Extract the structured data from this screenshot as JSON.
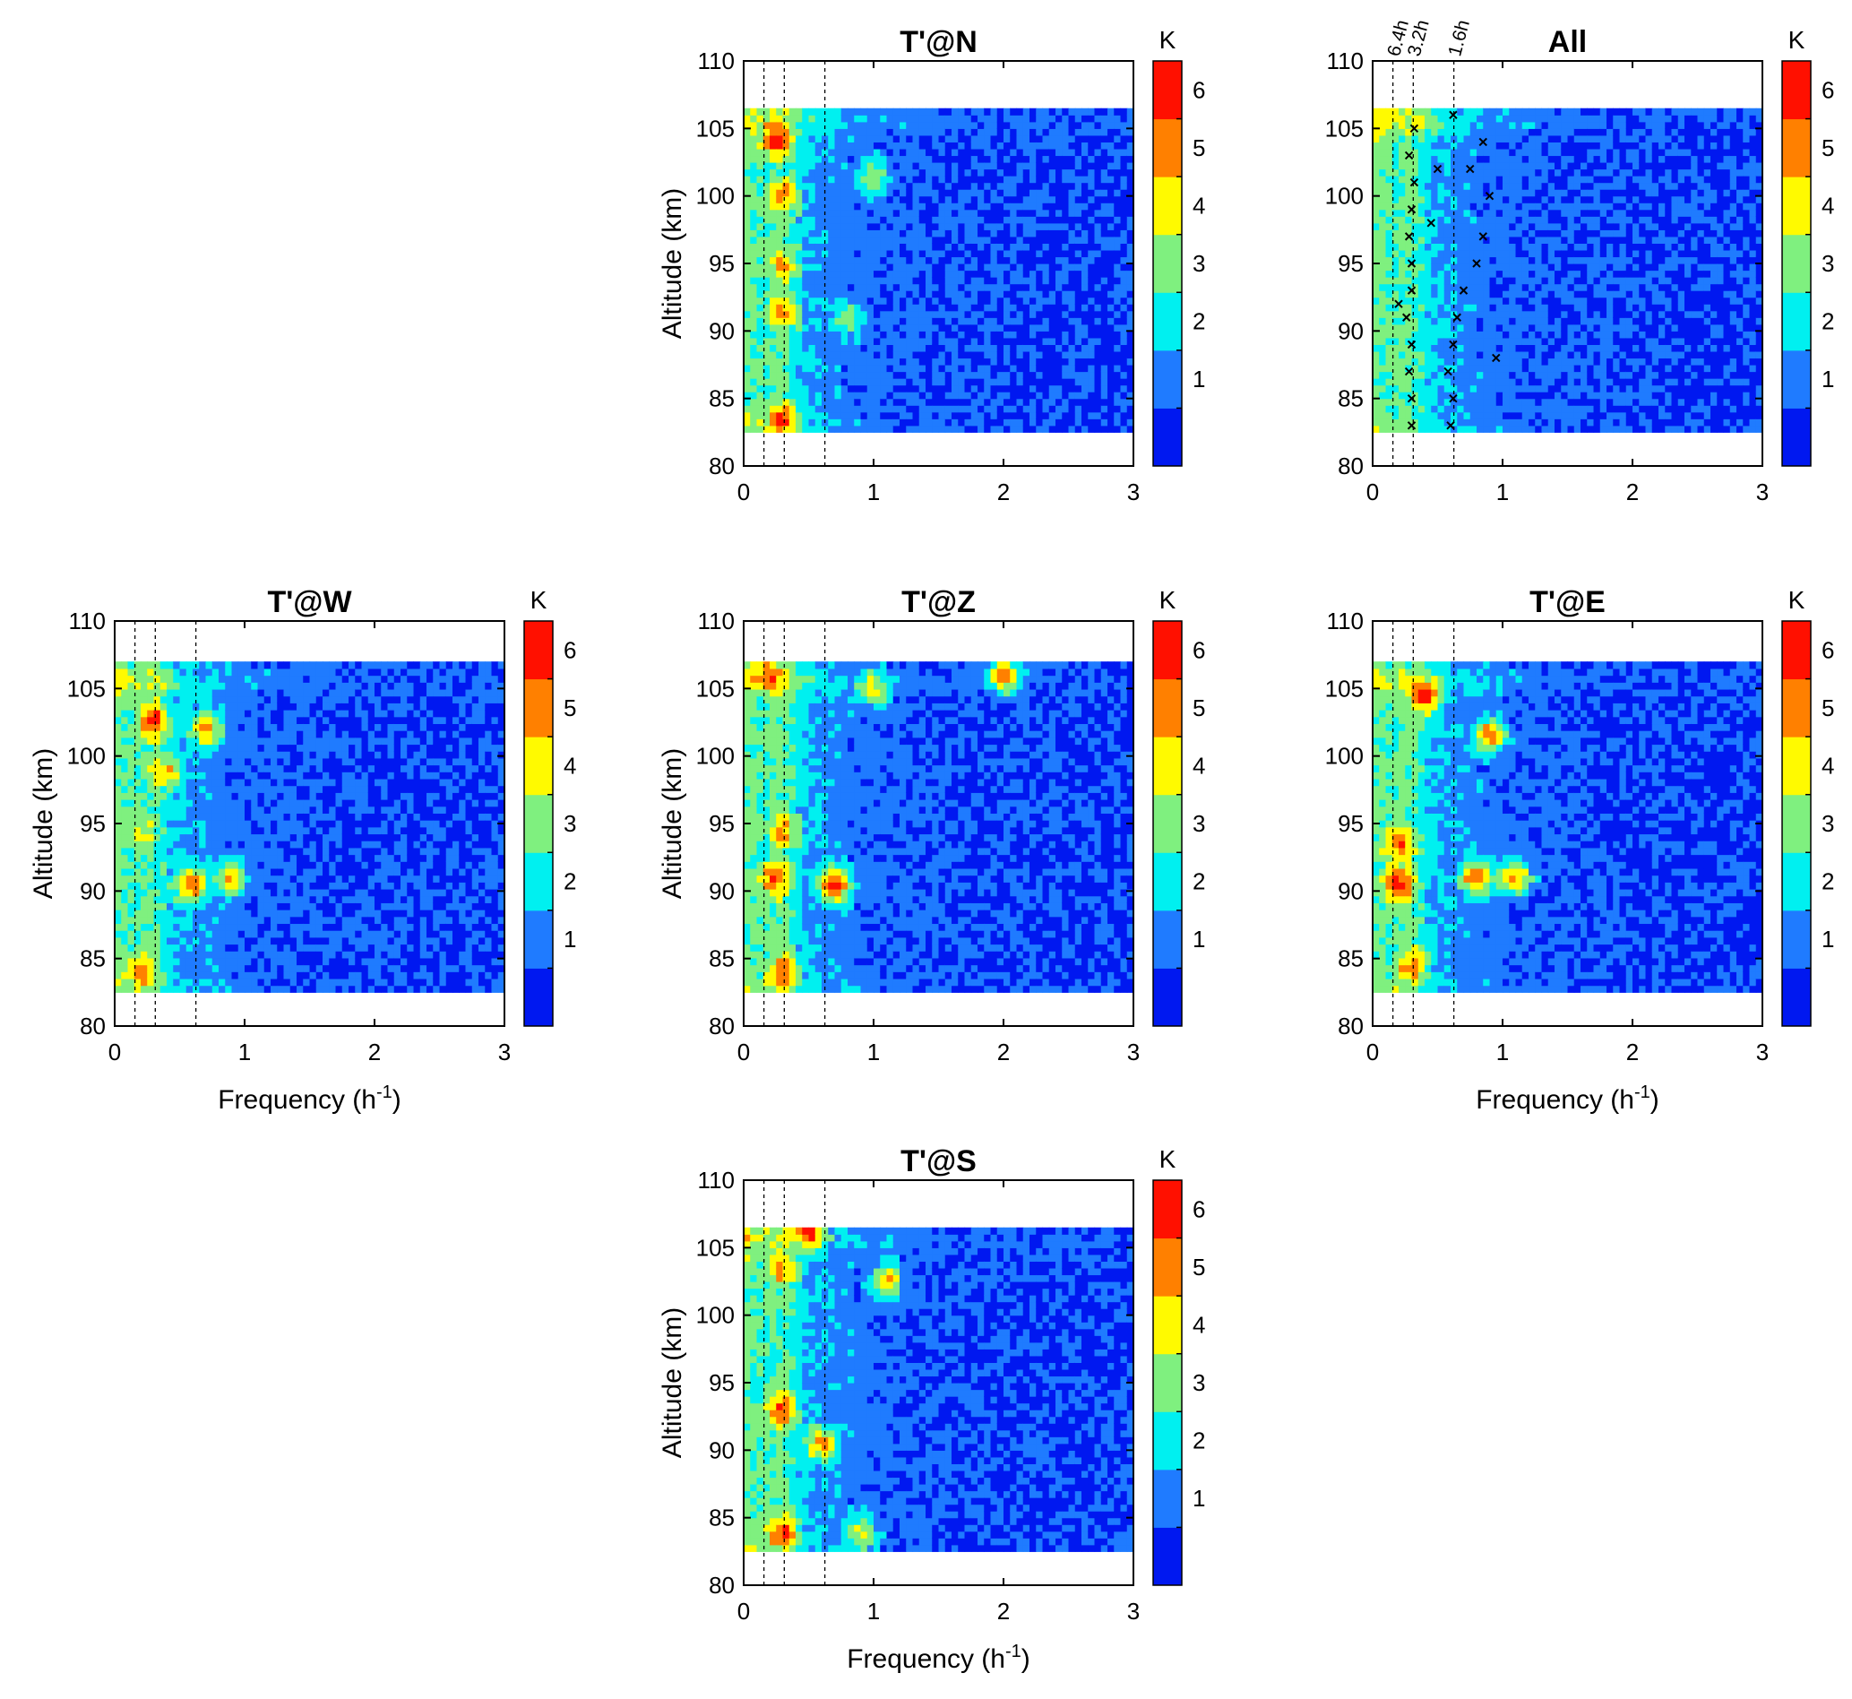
{
  "chart_data": [
    {
      "id": "N",
      "type": "heatmap",
      "title": "T'@N",
      "xlabel": "",
      "ylabel": "Altitude (km)",
      "xlim": [
        0,
        3
      ],
      "ylim": [
        80,
        110
      ],
      "xticks": [
        "0",
        "1",
        "2",
        "3"
      ],
      "yticks": [
        "80",
        "85",
        "90",
        "95",
        "100",
        "105",
        "110"
      ],
      "data_altitude_range": [
        82.5,
        106.5
      ],
      "period_lines_freq": [
        0.156,
        0.3125,
        0.625
      ],
      "colorbar": {
        "unit": "K",
        "ticks": [
          "1",
          "2",
          "3",
          "4",
          "5",
          "6"
        ]
      },
      "hot_spots": [
        {
          "freq": 0.25,
          "alt": 104.2,
          "value": 6.5
        },
        {
          "freq": 0.3,
          "alt": 91.5,
          "value": 5.5
        },
        {
          "freq": 0.3,
          "alt": 83.5,
          "value": 6
        },
        {
          "freq": 0.3,
          "alt": 95,
          "value": 5
        },
        {
          "freq": 0.3,
          "alt": 100,
          "value": 5.5
        },
        {
          "freq": 1.0,
          "alt": 101.5,
          "value": 4
        },
        {
          "freq": 0.8,
          "alt": 91,
          "value": 3.5
        }
      ]
    },
    {
      "id": "All",
      "type": "heatmap",
      "title": "All",
      "xlabel": "",
      "ylabel": "",
      "xlim": [
        0,
        3
      ],
      "ylim": [
        80,
        110
      ],
      "xticks": [
        "0",
        "1",
        "2",
        "3"
      ],
      "yticks": [
        "80",
        "85",
        "90",
        "95",
        "100",
        "105",
        "110"
      ],
      "data_altitude_range": [
        82.5,
        106.5
      ],
      "period_lines_freq": [
        0.156,
        0.3125,
        0.625
      ],
      "period_labels": [
        "6.4h",
        "3.2h",
        "1.6h"
      ],
      "colorbar": {
        "unit": "K",
        "ticks": [
          "1",
          "2",
          "3",
          "4",
          "5",
          "6"
        ]
      },
      "markers": [
        {
          "freq": 0.3,
          "alt": 83
        },
        {
          "freq": 0.3,
          "alt": 85
        },
        {
          "freq": 0.28,
          "alt": 87
        },
        {
          "freq": 0.3,
          "alt": 89
        },
        {
          "freq": 0.26,
          "alt": 91
        },
        {
          "freq": 0.3,
          "alt": 93
        },
        {
          "freq": 0.3,
          "alt": 95
        },
        {
          "freq": 0.28,
          "alt": 97
        },
        {
          "freq": 0.3,
          "alt": 99
        },
        {
          "freq": 0.32,
          "alt": 101
        },
        {
          "freq": 0.28,
          "alt": 103
        },
        {
          "freq": 0.32,
          "alt": 105
        },
        {
          "freq": 0.6,
          "alt": 83
        },
        {
          "freq": 0.62,
          "alt": 85
        },
        {
          "freq": 0.58,
          "alt": 87
        },
        {
          "freq": 0.62,
          "alt": 89
        },
        {
          "freq": 0.65,
          "alt": 91
        },
        {
          "freq": 0.7,
          "alt": 93
        },
        {
          "freq": 0.8,
          "alt": 95
        },
        {
          "freq": 0.85,
          "alt": 97
        },
        {
          "freq": 0.9,
          "alt": 100
        },
        {
          "freq": 0.75,
          "alt": 102
        },
        {
          "freq": 0.85,
          "alt": 104
        },
        {
          "freq": 0.62,
          "alt": 106
        },
        {
          "freq": 0.95,
          "alt": 88
        },
        {
          "freq": 0.2,
          "alt": 92
        },
        {
          "freq": 0.45,
          "alt": 98
        },
        {
          "freq": 0.5,
          "alt": 102
        }
      ]
    },
    {
      "id": "W",
      "type": "heatmap",
      "title": "T'@W",
      "xlabel": "Frequency (h",
      "xlabel_sup": "-1",
      "xlabel_end": ")",
      "ylabel": "Altitude (km)",
      "xlim": [
        0,
        3
      ],
      "ylim": [
        80,
        110
      ],
      "xticks": [
        "0",
        "1",
        "2",
        "3"
      ],
      "yticks": [
        "80",
        "85",
        "90",
        "95",
        "100",
        "105",
        "110"
      ],
      "data_altitude_range": [
        82.5,
        107
      ],
      "period_lines_freq": [
        0.156,
        0.3125,
        0.625
      ],
      "colorbar": {
        "unit": "K",
        "ticks": [
          "1",
          "2",
          "3",
          "4",
          "5",
          "6"
        ]
      },
      "hot_spots": [
        {
          "freq": 0.3,
          "alt": 102.5,
          "value": 6.5
        },
        {
          "freq": 0.6,
          "alt": 90.5,
          "value": 6
        },
        {
          "freq": 0.2,
          "alt": 84,
          "value": 5.5
        },
        {
          "freq": 0.7,
          "alt": 102,
          "value": 5.5
        },
        {
          "freq": 0.9,
          "alt": 91,
          "value": 5
        },
        {
          "freq": 0.2,
          "alt": 94.5,
          "value": 4.5
        },
        {
          "freq": 0.4,
          "alt": 99,
          "value": 5
        }
      ]
    },
    {
      "id": "Z",
      "type": "heatmap",
      "title": "T'@Z",
      "xlabel": "",
      "ylabel": "Altitude (km)",
      "xlim": [
        0,
        3
      ],
      "ylim": [
        80,
        110
      ],
      "xticks": [
        "0",
        "1",
        "2",
        "3"
      ],
      "yticks": [
        "80",
        "85",
        "90",
        "95",
        "100",
        "105",
        "110"
      ],
      "data_altitude_range": [
        82.5,
        107
      ],
      "period_lines_freq": [
        0.156,
        0.3125,
        0.625
      ],
      "colorbar": {
        "unit": "K",
        "ticks": [
          "1",
          "2",
          "3",
          "4",
          "5",
          "6"
        ]
      },
      "hot_spots": [
        {
          "freq": 0.7,
          "alt": 90.5,
          "value": 6.5
        },
        {
          "freq": 0.25,
          "alt": 91,
          "value": 6
        },
        {
          "freq": 0.3,
          "alt": 84,
          "value": 6
        },
        {
          "freq": 0.3,
          "alt": 94.5,
          "value": 5
        },
        {
          "freq": 0.2,
          "alt": 106,
          "value": 6
        },
        {
          "freq": 2.0,
          "alt": 106,
          "value": 5.5
        },
        {
          "freq": 1.0,
          "alt": 105,
          "value": 4.5
        }
      ]
    },
    {
      "id": "E",
      "type": "heatmap",
      "title": "T'@E",
      "xlabel": "Frequency (h",
      "xlabel_sup": "-1",
      "xlabel_end": ")",
      "ylabel": "",
      "xlim": [
        0,
        3
      ],
      "ylim": [
        80,
        110
      ],
      "xticks": [
        "0",
        "1",
        "2",
        "3"
      ],
      "yticks": [
        "80",
        "85",
        "90",
        "95",
        "100",
        "105",
        "110"
      ],
      "data_altitude_range": [
        82.5,
        107
      ],
      "period_lines_freq": [
        0.156,
        0.3125,
        0.625
      ],
      "colorbar": {
        "unit": "K",
        "ticks": [
          "1",
          "2",
          "3",
          "4",
          "5",
          "6"
        ]
      },
      "hot_spots": [
        {
          "freq": 0.4,
          "alt": 104.5,
          "value": 6.5
        },
        {
          "freq": 0.2,
          "alt": 90.5,
          "value": 6.5
        },
        {
          "freq": 0.8,
          "alt": 91,
          "value": 6
        },
        {
          "freq": 1.1,
          "alt": 91,
          "value": 5.5
        },
        {
          "freq": 0.2,
          "alt": 93.5,
          "value": 6
        },
        {
          "freq": 0.9,
          "alt": 101.5,
          "value": 6
        },
        {
          "freq": 0.3,
          "alt": 84.5,
          "value": 5.5
        }
      ]
    },
    {
      "id": "S",
      "type": "heatmap",
      "title": "T'@S",
      "xlabel": "Frequency (h",
      "xlabel_sup": "-1",
      "xlabel_end": ")",
      "ylabel": "Altitude (km)",
      "xlim": [
        0,
        3
      ],
      "ylim": [
        80,
        110
      ],
      "xticks": [
        "0",
        "1",
        "2",
        "3"
      ],
      "yticks": [
        "80",
        "85",
        "90",
        "95",
        "100",
        "105",
        "110"
      ],
      "data_altitude_range": [
        82.5,
        106.5
      ],
      "period_lines_freq": [
        0.156,
        0.3125,
        0.625
      ],
      "colorbar": {
        "unit": "K",
        "ticks": [
          "1",
          "2",
          "3",
          "4",
          "5",
          "6"
        ]
      },
      "hot_spots": [
        {
          "freq": 0.3,
          "alt": 93,
          "value": 6
        },
        {
          "freq": 0.6,
          "alt": 90.5,
          "value": 5.5
        },
        {
          "freq": 0.3,
          "alt": 84,
          "value": 6
        },
        {
          "freq": 0.3,
          "alt": 103.5,
          "value": 5.5
        },
        {
          "freq": 0.5,
          "alt": 106,
          "value": 6
        },
        {
          "freq": 1.1,
          "alt": 102.5,
          "value": 5
        },
        {
          "freq": 0.9,
          "alt": 84,
          "value": 4.5
        }
      ]
    }
  ],
  "colormap": [
    "#0018f0",
    "#1f7bff",
    "#00f0f0",
    "#7ff07f",
    "#fffa00",
    "#ff8000",
    "#ff1000"
  ]
}
